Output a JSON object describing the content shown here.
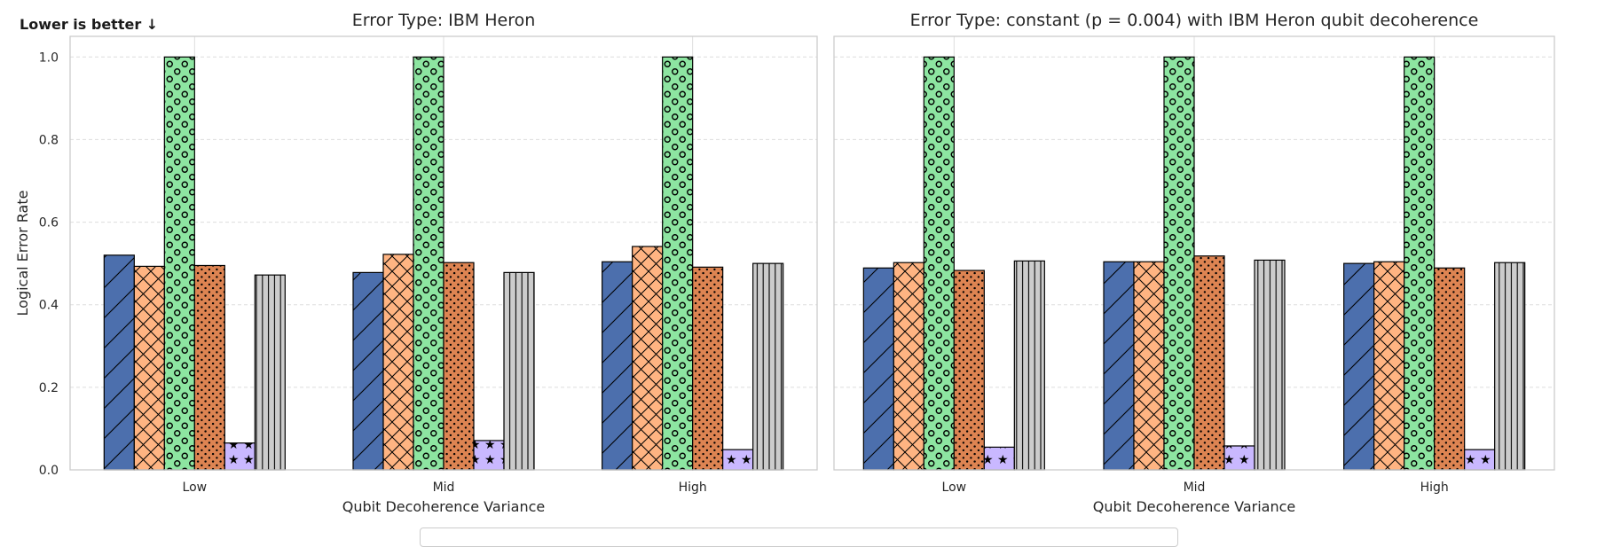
{
  "note": "Lower is better ↓",
  "chart_data": [
    {
      "type": "bar",
      "title": "Error Type: IBM Heron",
      "xlabel": "Qubit Decoherence Variance",
      "ylabel": "Logical Error Rate",
      "categories": [
        "Low",
        "Mid",
        "High"
      ],
      "ylim": [
        0,
        1.05
      ],
      "yticks": [
        "0.0",
        "0.2",
        "0.4",
        "0.6",
        "0.8",
        "1.0"
      ],
      "grid": true,
      "series": [
        {
          "color": "#4c6fad",
          "hatch": "diagonal",
          "values": [
            0.52,
            0.478,
            0.504
          ]
        },
        {
          "color": "#ffb482",
          "hatch": "crosshatch",
          "values": [
            0.493,
            0.522,
            0.541
          ]
        },
        {
          "color": "#8de5a1",
          "hatch": "circles",
          "values": [
            1.0,
            1.0,
            1.0
          ]
        },
        {
          "color": "#dd8452",
          "hatch": "dots",
          "values": [
            0.495,
            0.502,
            0.491
          ]
        },
        {
          "color": "#c9b8ff",
          "hatch": "stars",
          "values": [
            0.065,
            0.071,
            0.049
          ]
        },
        {
          "color": "#cccccc",
          "hatch": "vertical",
          "values": [
            0.472,
            0.478,
            0.5
          ]
        }
      ]
    },
    {
      "type": "bar",
      "title": "Error Type: constant (p = 0.004) with IBM Heron qubit decoherence",
      "xlabel": "Qubit Decoherence Variance",
      "ylabel": "",
      "categories": [
        "Low",
        "Mid",
        "High"
      ],
      "ylim": [
        0,
        1.05
      ],
      "yticks": [],
      "grid": true,
      "series": [
        {
          "color": "#4c6fad",
          "hatch": "diagonal",
          "values": [
            0.489,
            0.504,
            0.5
          ]
        },
        {
          "color": "#ffb482",
          "hatch": "crosshatch",
          "values": [
            0.502,
            0.504,
            0.504
          ]
        },
        {
          "color": "#8de5a1",
          "hatch": "circles",
          "values": [
            1.0,
            1.0,
            1.0
          ]
        },
        {
          "color": "#dd8452",
          "hatch": "dots",
          "values": [
            0.483,
            0.518,
            0.489
          ]
        },
        {
          "color": "#c9b8ff",
          "hatch": "stars",
          "values": [
            0.055,
            0.058,
            0.049
          ]
        },
        {
          "color": "#cccccc",
          "hatch": "vertical",
          "values": [
            0.506,
            0.508,
            0.502
          ]
        }
      ]
    }
  ]
}
